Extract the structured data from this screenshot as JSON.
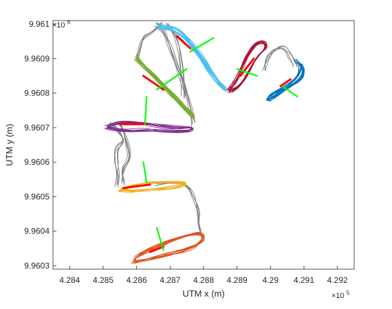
{
  "chart_data": {
    "type": "line",
    "title": "",
    "xlabel": "UTM x (m)",
    "ylabel": "UTM y (m)",
    "x_exponent_label": "×10",
    "x_exponent": "5",
    "y_exponent_label": "×10",
    "y_exponent": "6",
    "xlim": [
      428350,
      429250
    ],
    "ylim": [
      9960290,
      9961010
    ],
    "x_ticks": [
      428400,
      428500,
      428600,
      428700,
      428800,
      428900,
      429000,
      429100,
      429200
    ],
    "x_tick_labels": [
      "4.284",
      "4.285",
      "4.286",
      "4.287",
      "4.288",
      "4.289",
      "4.29",
      "4.291",
      "4.292"
    ],
    "y_ticks": [
      9960300,
      9960400,
      9960500,
      9960600,
      9960700,
      9960800,
      9960900,
      9961000
    ],
    "y_tick_labels": [
      "9.9603",
      "9.9604",
      "9.9605",
      "9.9606",
      "9.9607",
      "9.9608",
      "9.9609",
      "9.961"
    ],
    "grid": false,
    "colors": {
      "gray": "#808080",
      "blue": "#0072bd",
      "orange": "#d95319",
      "yellow": "#edb120",
      "purple": "#7e2f8e",
      "green": "#77ac30",
      "cyan": "#4dbeee",
      "crimson": "#a2142f",
      "heading_green": "#00ff00",
      "estimate_red": "#ff0000"
    },
    "series": [
      {
        "color": "#808080",
        "role": "transitions",
        "x": [
          428660,
          428740,
          428760,
          428775,
          428790,
          428795,
          428780,
          428760,
          428720,
          428690,
          428660,
          428620,
          428590,
          428570,
          428560,
          428555,
          428550,
          428540,
          428535,
          428545,
          428560,
          428580,
          428560,
          428550,
          428545,
          428560,
          428585,
          428600,
          428620,
          428660,
          428700,
          428750,
          428800,
          428840,
          428860,
          428870,
          428880,
          428920,
          428950,
          428980,
          429000
        ]
      },
      {
        "color": "#d95319",
        "x": [
          428580,
          428620,
          428700,
          428760,
          428800,
          428790,
          428730,
          428660,
          428600,
          428580
        ]
      },
      {
        "color": "#edb120",
        "x": [
          428530,
          428570,
          428620,
          428680,
          428730,
          428750,
          428700,
          428620,
          428560,
          428530
        ]
      },
      {
        "color": "#7e2f8e",
        "x": [
          428510,
          428550,
          428620,
          428700,
          428760,
          428770,
          428720,
          428640,
          428560,
          428510
        ]
      },
      {
        "color": "#77ac30",
        "x": [
          428600,
          428650,
          428700,
          428740,
          428770,
          428775,
          428740,
          428700,
          428650,
          428610,
          428600
        ]
      },
      {
        "color": "#4dbeee",
        "x": [
          428720,
          428760,
          428800,
          428840,
          428870,
          428875,
          428850,
          428800,
          428760,
          428730,
          428720
        ]
      },
      {
        "color": "#a2142f",
        "x": [
          428880,
          428910,
          428940,
          428970,
          429000,
          429000,
          428980,
          428950,
          428920,
          428895,
          428880
        ]
      },
      {
        "color": "#0072bd",
        "x": [
          428980,
          429010,
          429050,
          429080,
          429100,
          429100,
          429080,
          429050,
          429020,
          428990,
          428980
        ]
      }
    ]
  }
}
